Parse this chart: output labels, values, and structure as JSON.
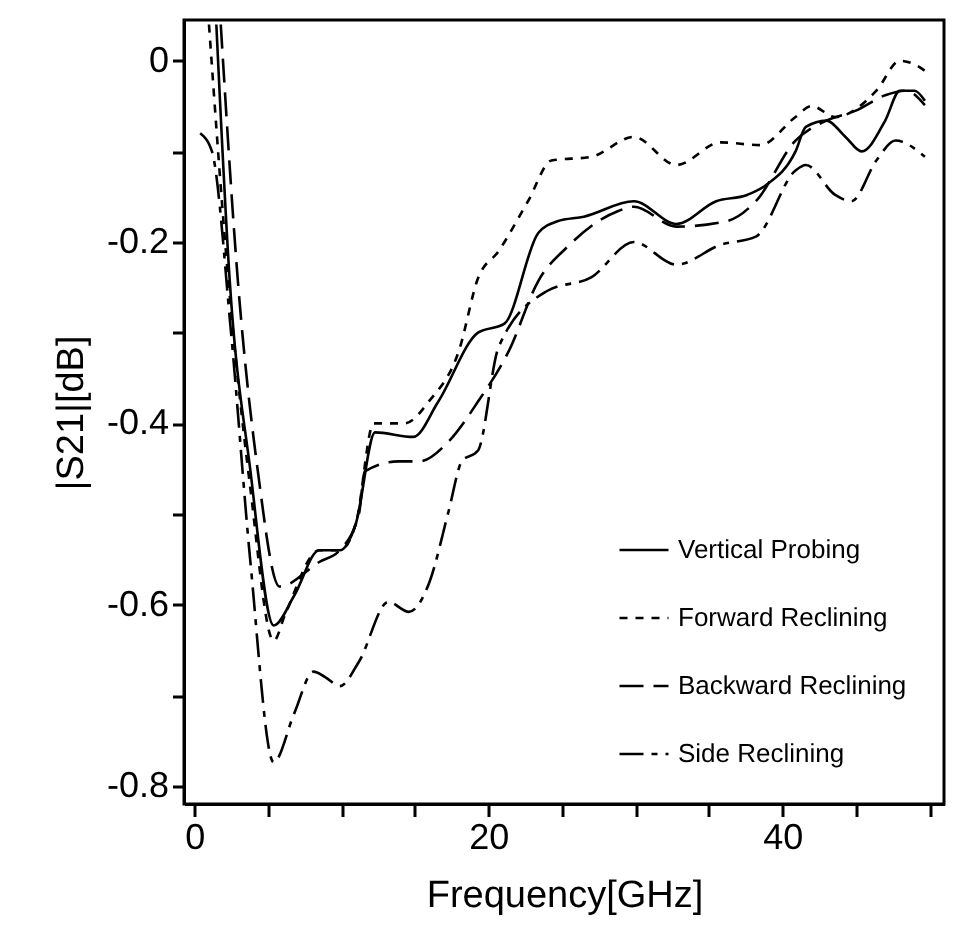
{
  "chart_data": {
    "type": "line",
    "xlabel": "Frequency[GHz]",
    "ylabel": "|S21|[dB]",
    "xlim": [
      -0.7,
      51
    ],
    "ylim": [
      -0.82,
      0.045
    ],
    "xticks": [
      0,
      {
        "value": 5,
        "label": null
      },
      {
        "value": 10,
        "label": null
      },
      {
        "value": 15,
        "label": null
      },
      20,
      {
        "value": 25,
        "label": null
      },
      {
        "value": 30,
        "label": null
      },
      {
        "value": 35,
        "label": null
      },
      40,
      {
        "value": 45,
        "label": null
      },
      {
        "value": 50,
        "label": null
      }
    ],
    "yticks": [
      0,
      {
        "value": -0.1,
        "label": null
      },
      -0.2,
      {
        "value": -0.3,
        "label": null
      },
      -0.4,
      {
        "value": -0.5,
        "label": null
      },
      -0.6,
      {
        "value": -0.7,
        "label": null
      },
      -0.8
    ],
    "grid": false,
    "legend": "bottom right",
    "marker": "none",
    "series": [
      {
        "name": "Vertical Probing",
        "color": "#000000",
        "line_style": "solid",
        "x": [
          1.5,
          2.4,
          3.8,
          5.4,
          6.8,
          8.5,
          9.9,
          11,
          12.3,
          14.9,
          16.6,
          19.3,
          21.1,
          23.4,
          24.7,
          26.5,
          29.9,
          32.8,
          35.5,
          37.6,
          38.9,
          40.9,
          41.6,
          43,
          44.3,
          45.4,
          47,
          48,
          49,
          49.7
        ],
        "values": [
          0.04,
          -0.24,
          -0.45,
          -0.623,
          -0.59,
          -0.54,
          -0.54,
          -0.51,
          -0.41,
          -0.415,
          -0.376,
          -0.3,
          -0.29,
          -0.19,
          -0.177,
          -0.172,
          -0.155,
          -0.18,
          -0.155,
          -0.148,
          -0.137,
          -0.1,
          -0.073,
          -0.066,
          -0.084,
          -0.1,
          -0.066,
          -0.033,
          -0.033,
          -0.044
        ]
      },
      {
        "name": "Forward Reclining",
        "color": "#000000",
        "line_style": "dotted",
        "x": [
          1.0,
          2.2,
          3.8,
          5.4,
          6.2,
          8.5,
          9.9,
          11,
          12.2,
          14.3,
          16,
          18,
          19.3,
          20.7,
          22.7,
          24.3,
          27,
          29.9,
          32.8,
          35.8,
          38.5,
          40.9,
          42,
          43.6,
          46.4,
          48,
          49,
          49.7
        ],
        "values": [
          0.04,
          -0.22,
          -0.47,
          -0.64,
          -0.61,
          -0.54,
          -0.54,
          -0.51,
          -0.4,
          -0.4,
          -0.375,
          -0.32,
          -0.24,
          -0.21,
          -0.155,
          -0.11,
          -0.106,
          -0.084,
          -0.115,
          -0.09,
          -0.093,
          -0.062,
          -0.05,
          -0.062,
          -0.033,
          0,
          -0.004,
          -0.011
        ]
      },
      {
        "name": "Backward Reclining",
        "color": "#000000",
        "line_style": "dashed",
        "x": [
          1.8,
          3,
          4.3,
          5.8,
          8.5,
          9.9,
          11.2,
          11.6,
          13.9,
          15.3,
          17.3,
          19.3,
          21.4,
          23.4,
          25.4,
          28.8,
          29.9,
          32.8,
          36.2,
          38.2,
          40.9,
          43,
          45,
          47,
          48.4,
          49.7
        ],
        "values": [
          0.04,
          -0.25,
          -0.45,
          -0.58,
          -0.553,
          -0.54,
          -0.5,
          -0.453,
          -0.442,
          -0.442,
          -0.42,
          -0.376,
          -0.32,
          -0.243,
          -0.205,
          -0.166,
          -0.161,
          -0.183,
          -0.177,
          -0.155,
          -0.088,
          -0.066,
          -0.055,
          -0.038,
          -0.033,
          -0.049
        ]
      },
      {
        "name": "Side Reclining",
        "color": "#000000",
        "line_style": "dashdot",
        "x": [
          0.4,
          1.2,
          2.5,
          3.8,
          5.4,
          6.8,
          8.1,
          8.9,
          9.9,
          11.2,
          13.2,
          14.6,
          16,
          17.3,
          18.2,
          19.3,
          20.7,
          24,
          27,
          29.9,
          32.8,
          35.8,
          38.2,
          40.9,
          41.6,
          43.6,
          44.7,
          46.4,
          47.7,
          49.7
        ],
        "values": [
          -0.08,
          -0.1,
          -0.3,
          -0.55,
          -0.774,
          -0.72,
          -0.674,
          -0.68,
          -0.69,
          -0.663,
          -0.597,
          -0.608,
          -0.575,
          -0.497,
          -0.442,
          -0.43,
          -0.316,
          -0.254,
          -0.239,
          -0.2,
          -0.225,
          -0.203,
          -0.194,
          -0.121,
          -0.115,
          -0.148,
          -0.155,
          -0.11,
          -0.088,
          -0.106
        ]
      }
    ]
  }
}
